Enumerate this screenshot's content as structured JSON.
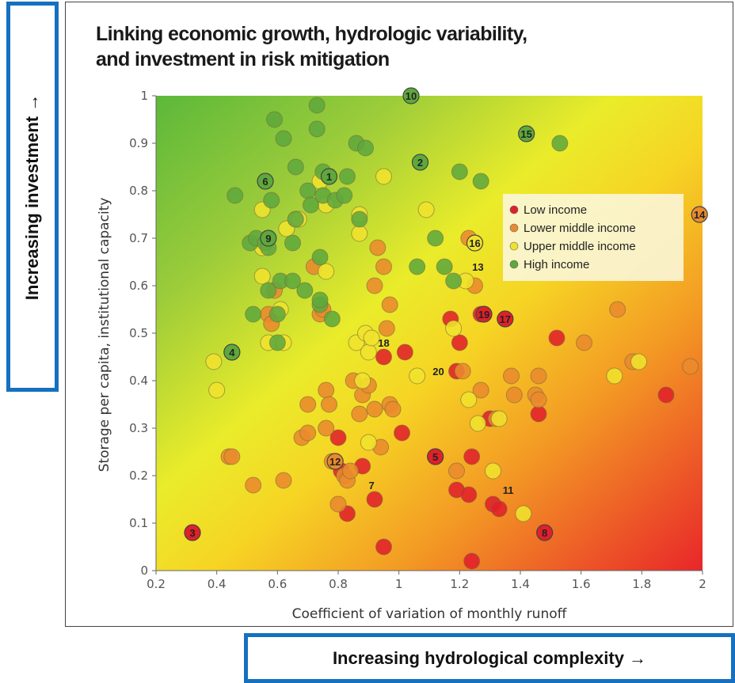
{
  "chart_data": {
    "type": "scatter",
    "title_lines": [
      "Linking economic growth, hydrologic variability,",
      "and investment in risk mitigation"
    ],
    "xlabel": "Coefficient of variation of monthly runoff",
    "ylabel": "Storage per capita, institutional capacity",
    "xlim": [
      0.2,
      2.0
    ],
    "ylim": [
      0,
      1.0
    ],
    "x_ticks": [
      "0.2",
      "0.4",
      "0.6",
      "0.8",
      "1",
      "1.2",
      "1.4",
      "1.6",
      "1.8",
      "2"
    ],
    "y_ticks": [
      "0",
      "0.1",
      "0.2",
      "0.3",
      "0.4",
      "0.5",
      "0.6",
      "0.7",
      "0.8",
      "0.9",
      "1"
    ],
    "grid": false,
    "background": "diagonal gradient green (top-left) to yellow to red (bottom-right)",
    "legend_position": "right",
    "series": [
      {
        "name": "Low income",
        "color": "#e0202a",
        "points": [
          [
            0.32,
            0.08
          ],
          [
            0.8,
            0.28
          ],
          [
            0.81,
            0.21
          ],
          [
            0.83,
            0.12
          ],
          [
            0.88,
            0.22
          ],
          [
            0.92,
            0.15
          ],
          [
            0.95,
            0.45
          ],
          [
            0.95,
            0.05
          ],
          [
            1.02,
            0.46
          ],
          [
            1.01,
            0.29
          ],
          [
            1.12,
            0.24
          ],
          [
            1.17,
            0.53
          ],
          [
            1.19,
            0.42
          ],
          [
            1.19,
            0.17
          ],
          [
            1.2,
            0.48
          ],
          [
            1.23,
            0.16
          ],
          [
            1.24,
            0.24
          ],
          [
            1.24,
            0.02
          ],
          [
            1.27,
            0.54
          ],
          [
            1.3,
            0.32
          ],
          [
            1.31,
            0.14
          ],
          [
            1.33,
            0.13
          ],
          [
            1.35,
            0.53
          ],
          [
            1.46,
            0.33
          ],
          [
            1.48,
            0.08
          ],
          [
            1.52,
            0.49
          ],
          [
            1.88,
            0.37
          ]
        ]
      },
      {
        "name": "Lower middle income",
        "color": "#e98a2c",
        "points": [
          [
            0.44,
            0.24
          ],
          [
            0.45,
            0.24
          ],
          [
            0.52,
            0.18
          ],
          [
            0.57,
            0.54
          ],
          [
            0.58,
            0.52
          ],
          [
            0.59,
            0.59
          ],
          [
            0.62,
            0.19
          ],
          [
            0.68,
            0.28
          ],
          [
            0.7,
            0.29
          ],
          [
            0.7,
            0.35
          ],
          [
            0.72,
            0.64
          ],
          [
            0.74,
            0.54
          ],
          [
            0.75,
            0.55
          ],
          [
            0.76,
            0.38
          ],
          [
            0.76,
            0.3
          ],
          [
            0.77,
            0.35
          ],
          [
            0.78,
            0.23
          ],
          [
            0.8,
            0.14
          ],
          [
            0.82,
            0.2
          ],
          [
            0.83,
            0.19
          ],
          [
            0.84,
            0.21
          ],
          [
            0.85,
            0.4
          ],
          [
            0.87,
            0.33
          ],
          [
            0.88,
            0.37
          ],
          [
            0.9,
            0.39
          ],
          [
            0.92,
            0.34
          ],
          [
            0.92,
            0.6
          ],
          [
            0.93,
            0.68
          ],
          [
            0.94,
            0.26
          ],
          [
            0.95,
            0.64
          ],
          [
            0.96,
            0.51
          ],
          [
            0.97,
            0.56
          ],
          [
            0.97,
            0.35
          ],
          [
            0.98,
            0.34
          ],
          [
            1.19,
            0.21
          ],
          [
            1.21,
            0.42
          ],
          [
            1.23,
            0.7
          ],
          [
            1.25,
            0.6
          ],
          [
            1.27,
            0.38
          ],
          [
            1.32,
            0.32
          ],
          [
            1.37,
            0.41
          ],
          [
            1.38,
            0.37
          ],
          [
            1.45,
            0.37
          ],
          [
            1.46,
            0.41
          ],
          [
            1.46,
            0.36
          ],
          [
            1.61,
            0.48
          ],
          [
            1.72,
            0.55
          ],
          [
            1.77,
            0.44
          ],
          [
            1.96,
            0.43
          ],
          [
            1.99,
            0.75
          ]
        ]
      },
      {
        "name": "Upper middle income",
        "color": "#f0e22c",
        "points": [
          [
            0.39,
            0.44
          ],
          [
            0.4,
            0.38
          ],
          [
            0.55,
            0.76
          ],
          [
            0.55,
            0.68
          ],
          [
            0.55,
            0.62
          ],
          [
            0.57,
            0.48
          ],
          [
            0.61,
            0.55
          ],
          [
            0.62,
            0.48
          ],
          [
            0.63,
            0.72
          ],
          [
            0.66,
            0.74
          ],
          [
            0.67,
            0.74
          ],
          [
            0.74,
            0.82
          ],
          [
            0.76,
            0.77
          ],
          [
            0.76,
            0.63
          ],
          [
            0.86,
            0.48
          ],
          [
            0.87,
            0.75
          ],
          [
            0.87,
            0.71
          ],
          [
            0.88,
            0.4
          ],
          [
            0.89,
            0.5
          ],
          [
            0.9,
            0.27
          ],
          [
            0.9,
            0.46
          ],
          [
            0.91,
            0.49
          ],
          [
            0.95,
            0.83
          ],
          [
            1.06,
            0.41
          ],
          [
            1.09,
            0.76
          ],
          [
            1.18,
            0.51
          ],
          [
            1.22,
            0.61
          ],
          [
            1.23,
            0.36
          ],
          [
            1.26,
            0.31
          ],
          [
            1.31,
            0.21
          ],
          [
            1.33,
            0.32
          ],
          [
            1.41,
            0.12
          ],
          [
            1.71,
            0.41
          ],
          [
            1.79,
            0.44
          ]
        ]
      },
      {
        "name": "High income",
        "color": "#5ea83c",
        "points": [
          [
            0.45,
            0.46
          ],
          [
            0.46,
            0.79
          ],
          [
            0.51,
            0.69
          ],
          [
            0.52,
            0.54
          ],
          [
            0.53,
            0.7
          ],
          [
            0.56,
            0.69
          ],
          [
            0.57,
            0.68
          ],
          [
            0.57,
            0.59
          ],
          [
            0.58,
            0.78
          ],
          [
            0.59,
            0.95
          ],
          [
            0.6,
            0.54
          ],
          [
            0.6,
            0.48
          ],
          [
            0.61,
            0.61
          ],
          [
            0.62,
            0.91
          ],
          [
            0.65,
            0.61
          ],
          [
            0.65,
            0.69
          ],
          [
            0.66,
            0.85
          ],
          [
            0.66,
            0.74
          ],
          [
            0.69,
            0.59
          ],
          [
            0.7,
            0.8
          ],
          [
            0.71,
            0.77
          ],
          [
            0.73,
            0.98
          ],
          [
            0.73,
            0.93
          ],
          [
            0.74,
            0.56
          ],
          [
            0.74,
            0.57
          ],
          [
            0.74,
            0.66
          ],
          [
            0.75,
            0.79
          ],
          [
            0.75,
            0.84
          ],
          [
            0.78,
            0.53
          ],
          [
            0.79,
            0.78
          ],
          [
            0.82,
            0.79
          ],
          [
            0.83,
            0.83
          ],
          [
            0.86,
            0.9
          ],
          [
            0.87,
            0.74
          ],
          [
            0.89,
            0.89
          ],
          [
            1.06,
            0.64
          ],
          [
            1.12,
            0.7
          ],
          [
            1.15,
            0.64
          ],
          [
            1.18,
            0.61
          ],
          [
            1.2,
            0.84
          ],
          [
            1.27,
            0.82
          ],
          [
            1.53,
            0.9
          ]
        ]
      }
    ],
    "labeled_points": [
      {
        "label": "1",
        "x": 0.77,
        "y": 0.83,
        "color": "#5ea83c",
        "style": "marker"
      },
      {
        "label": "2",
        "x": 1.07,
        "y": 0.86,
        "color": "#5ea83c",
        "style": "marker"
      },
      {
        "label": "3",
        "x": 0.32,
        "y": 0.08,
        "color": "#e0202a",
        "style": "marker"
      },
      {
        "label": "4",
        "x": 0.45,
        "y": 0.46,
        "color": "#5ea83c",
        "style": "marker"
      },
      {
        "label": "5",
        "x": 1.12,
        "y": 0.24,
        "color": "#e0202a",
        "style": "marker"
      },
      {
        "label": "6",
        "x": 0.56,
        "y": 0.82,
        "color": "#5ea83c",
        "style": "marker"
      },
      {
        "label": "7",
        "x": 0.91,
        "y": 0.18,
        "color": "",
        "style": "text"
      },
      {
        "label": "8",
        "x": 1.48,
        "y": 0.08,
        "color": "#e0202a",
        "style": "marker"
      },
      {
        "label": "9",
        "x": 0.57,
        "y": 0.7,
        "color": "#5ea83c",
        "style": "marker"
      },
      {
        "label": "10",
        "x": 1.04,
        "y": 1.0,
        "color": "#5ea83c",
        "style": "marker"
      },
      {
        "label": "11",
        "x": 1.36,
        "y": 0.17,
        "color": "",
        "style": "text"
      },
      {
        "label": "12",
        "x": 0.79,
        "y": 0.23,
        "color": "#e98a2c",
        "style": "marker"
      },
      {
        "label": "13",
        "x": 1.26,
        "y": 0.64,
        "color": "",
        "style": "text"
      },
      {
        "label": "14",
        "x": 1.99,
        "y": 0.75,
        "color": "#e98a2c",
        "style": "marker"
      },
      {
        "label": "15",
        "x": 1.42,
        "y": 0.92,
        "color": "#5ea83c",
        "style": "marker"
      },
      {
        "label": "16",
        "x": 1.25,
        "y": 0.69,
        "color": "#f0e22c",
        "style": "marker"
      },
      {
        "label": "17",
        "x": 1.35,
        "y": 0.53,
        "color": "#e0202a",
        "style": "marker"
      },
      {
        "label": "18",
        "x": 0.95,
        "y": 0.48,
        "color": "",
        "style": "text"
      },
      {
        "label": "19",
        "x": 1.28,
        "y": 0.54,
        "color": "#e0202a",
        "style": "marker"
      },
      {
        "label": "20",
        "x": 1.13,
        "y": 0.42,
        "color": "",
        "style": "text"
      }
    ]
  },
  "callouts": {
    "investment": "Increasing investment →",
    "complexity": "Increasing hydrological complexity →"
  }
}
